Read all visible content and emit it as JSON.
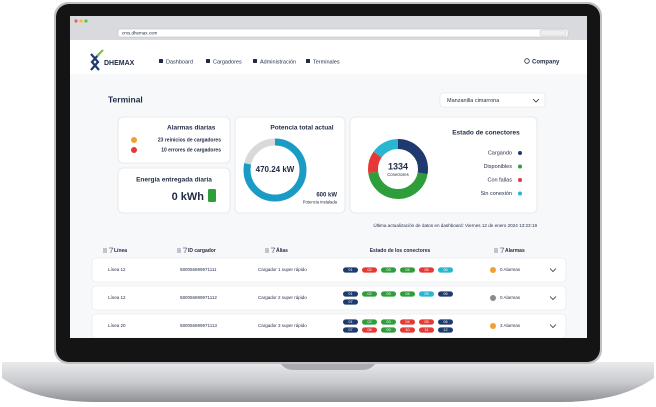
{
  "browser": {
    "url": "cms.dhemax.com"
  },
  "nav": {
    "brand": "DHEMAX",
    "items": [
      "Dashboard",
      "Cargadores",
      "Administración",
      "Terminales"
    ],
    "account": "Company"
  },
  "page": {
    "title": "Terminal",
    "selector": "Manzanilla cimarrona"
  },
  "alarms": {
    "title": "Alarmas diarias",
    "items": [
      "23 reinicios de cargadores",
      "10 errores de cargadores"
    ]
  },
  "energy": {
    "title": "Energía entregada diaria",
    "value": "0 kWh"
  },
  "power": {
    "title": "Potencia total actual",
    "value": 470.24,
    "value_label": "470.24 kW",
    "max": 600,
    "max_label": "600 kW",
    "max_caption": "Potencia instalada"
  },
  "connectors": {
    "title": "Estado de conectores",
    "total": 1334,
    "total_caption": "Conectores",
    "segments": [
      {
        "name": "Cargando",
        "color": "#1e3a6e",
        "value": 370
      },
      {
        "name": "Disponibles",
        "color": "#2e9e3a",
        "value": 600
      },
      {
        "name": "Con fallas",
        "color": "#e53935",
        "value": 160
      },
      {
        "name": "Sin conexión",
        "color": "#29b6d1",
        "value": 204
      }
    ]
  },
  "updated": "Última actualización de datos en dashboard: Viernes 12 de enero 2024  13:23:19",
  "table": {
    "columns": [
      "Línea",
      "ID cargador",
      "Álias",
      "Estado de los conectores",
      "Alarmas"
    ],
    "rows": [
      {
        "line": "Línea 12",
        "id": "580056899971111",
        "alias": "Cargador 1 super rápido",
        "alarms": "0 Alarmas",
        "alarm_color": "#f0a030",
        "connectors": [
          {
            "label": "01",
            "color": "#1e3a6e"
          },
          {
            "label": "02",
            "color": "#e53935"
          },
          {
            "label": "03",
            "color": "#2e9e3a"
          },
          {
            "label": "04",
            "color": "#2e9e3a"
          },
          {
            "label": "05",
            "color": "#e53935"
          },
          {
            "label": "06",
            "color": "#29b6d1"
          }
        ]
      },
      {
        "line": "Línea 12",
        "id": "580056899971112",
        "alias": "Cargador 2 super rápido",
        "alarms": "0 Alarmas",
        "alarm_color": "#8a8a8a",
        "connectors": [
          {
            "label": "01",
            "color": "#1e3a6e"
          },
          {
            "label": "02",
            "color": "#2e9e3a"
          },
          {
            "label": "03",
            "color": "#2e9e3a"
          },
          {
            "label": "04",
            "color": "#2e9e3a"
          },
          {
            "label": "05",
            "color": "#29b6d1"
          },
          {
            "label": "06",
            "color": "#1e3a6e"
          },
          {
            "label": "07",
            "color": "#1e3a6e"
          }
        ]
      },
      {
        "line": "Línea 20",
        "id": "580056899971113",
        "alias": "Cargador 3 super rápido",
        "alarms": "3 Alarmas",
        "alarm_color": "#f0a030",
        "connectors": [
          {
            "label": "01",
            "color": "#1e3a6e"
          },
          {
            "label": "02",
            "color": "#2e9e3a"
          },
          {
            "label": "03",
            "color": "#2e9e3a"
          },
          {
            "label": "04",
            "color": "#e53935"
          },
          {
            "label": "05",
            "color": "#e53935"
          },
          {
            "label": "06",
            "color": "#1e3a6e"
          },
          {
            "label": "07",
            "color": "#1e3a6e"
          },
          {
            "label": "08",
            "color": "#e53935"
          },
          {
            "label": "09",
            "color": "#2e9e3a"
          },
          {
            "label": "10",
            "color": "#e53935"
          },
          {
            "label": "11",
            "color": "#e53935"
          },
          {
            "label": "12",
            "color": "#1e3a6e"
          }
        ]
      }
    ]
  }
}
